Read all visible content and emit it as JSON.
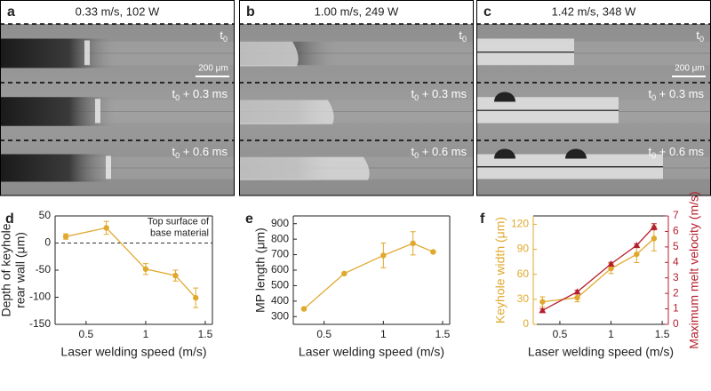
{
  "panels": [
    {
      "letter": "a",
      "title": "0.33 m/s, 102 W",
      "scale_bar": "200 μm",
      "frames": [
        {
          "base": "t",
          "sub": "0"
        },
        {
          "base": "t",
          "sub": "0",
          "rest": " + 0.3 ms"
        },
        {
          "base": "t",
          "sub": "0",
          "rest": " + 0.6 ms"
        }
      ]
    },
    {
      "letter": "b",
      "title": "1.00 m/s, 249 W",
      "frames": [
        {
          "base": "t",
          "sub": "0"
        },
        {
          "base": "t",
          "sub": "0",
          "rest": " + 0.3 ms"
        },
        {
          "base": "t",
          "sub": "0",
          "rest": " + 0.6 ms"
        }
      ]
    },
    {
      "letter": "c",
      "title": "1.42 m/s, 348 W",
      "scale_bar": "200 μm",
      "frames": [
        {
          "base": "t",
          "sub": "0"
        },
        {
          "base": "t",
          "sub": "0",
          "rest": " + 0.3 ms"
        },
        {
          "base": "t",
          "sub": "0",
          "rest": " + 0.6 ms"
        }
      ]
    }
  ],
  "chart_data": [
    {
      "type": "line",
      "panel_label": "d",
      "xlabel": "Laser welding speed (m/s)",
      "ylabel": [
        "Depth of keyhole",
        "rear wall (μm)"
      ],
      "x": [
        0.33,
        0.67,
        1.0,
        1.25,
        1.42
      ],
      "xlim": [
        0.24,
        1.56
      ],
      "xticks": [
        0.5,
        1,
        1.5
      ],
      "ylim": [
        -150,
        50
      ],
      "yticks": [
        -150,
        -100,
        -50,
        0,
        50
      ],
      "hline": 0,
      "annotation": [
        "Top surface of",
        "base material"
      ],
      "series": [
        {
          "color": "#e0a92e",
          "marker": "circle",
          "values": [
            12,
            28,
            -48,
            -60,
            -101
          ],
          "errors": [
            5,
            12,
            10,
            10,
            18
          ]
        }
      ]
    },
    {
      "type": "line",
      "panel_label": "e",
      "xlabel": "Laser welding speed (m/s)",
      "ylabel": [
        "MP length (μm)"
      ],
      "x": [
        0.33,
        0.67,
        1.0,
        1.25,
        1.42
      ],
      "xlim": [
        0.24,
        1.56
      ],
      "xticks": [
        0.5,
        1,
        1.5
      ],
      "ylim": [
        250,
        950
      ],
      "yticks": [
        300,
        400,
        500,
        600,
        700,
        800,
        900
      ],
      "series": [
        {
          "color": "#e0a92e",
          "marker": "circle",
          "values": [
            350,
            578,
            695,
            773,
            718
          ],
          "errors": [
            5,
            5,
            80,
            75,
            8
          ]
        }
      ]
    },
    {
      "type": "line",
      "panel_label": "f",
      "xlabel": "Laser welding speed (m/s)",
      "ylabel": [
        "Keyhole width (μm)"
      ],
      "y2label": [
        "Maximum melt velocity (m/s)"
      ],
      "ylabel_color": "#e0a92e",
      "y2label_color": "#b5202e",
      "x": [
        0.33,
        0.67,
        1.0,
        1.25,
        1.42
      ],
      "xlim": [
        0.24,
        1.56
      ],
      "xticks": [
        0.5,
        1,
        1.5
      ],
      "ylim": [
        0,
        130
      ],
      "yticks": [
        0,
        30,
        60,
        90,
        120
      ],
      "y2lim": [
        0,
        7
      ],
      "y2ticks": [
        0,
        1,
        2,
        3,
        4,
        5,
        6,
        7
      ],
      "series": [
        {
          "color": "#e0a92e",
          "marker": "circle",
          "values": [
            27,
            32,
            67,
            84,
            103
          ],
          "errors": [
            6,
            5,
            6,
            10,
            15
          ]
        },
        {
          "color": "#b5202e",
          "marker": "triangle",
          "axis": "y2",
          "values": [
            0.9,
            2.1,
            3.9,
            5.1,
            6.3
          ],
          "errors": [
            0.1,
            0.1,
            0.1,
            0.1,
            0.2
          ]
        }
      ]
    }
  ]
}
